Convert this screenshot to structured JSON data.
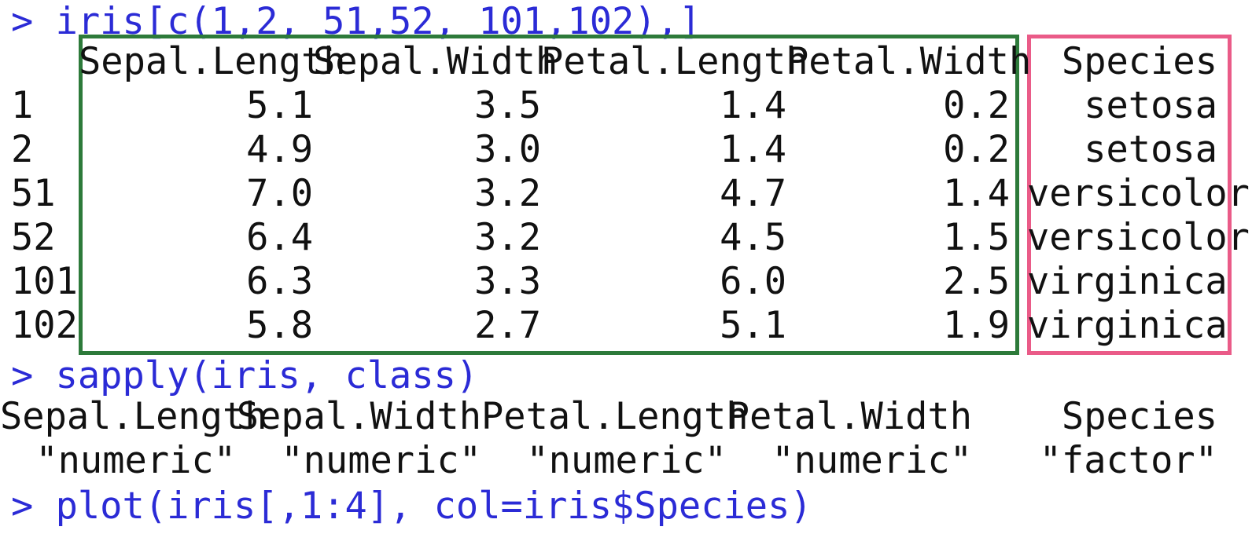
{
  "commands": {
    "first": "> iris[c(1,2, 51,52, 101,102),]",
    "second": "> sapply(iris, class)",
    "third": "> plot(iris[,1:4], col=iris$Species)"
  },
  "table": {
    "columns": [
      "Sepal.Length",
      "Sepal.Width",
      "Petal.Length",
      "Petal.Width",
      "Species"
    ],
    "rows": [
      {
        "name": "1",
        "values": [
          "5.1",
          "3.5",
          "1.4",
          "0.2",
          "setosa"
        ]
      },
      {
        "name": "2",
        "values": [
          "4.9",
          "3.0",
          "1.4",
          "0.2",
          "setosa"
        ]
      },
      {
        "name": "51",
        "values": [
          "7.0",
          "3.2",
          "4.7",
          "1.4",
          "versicolor"
        ]
      },
      {
        "name": "52",
        "values": [
          "6.4",
          "3.2",
          "4.5",
          "1.5",
          "versicolor"
        ]
      },
      {
        "name": "101",
        "values": [
          "6.3",
          "3.3",
          "6.0",
          "2.5",
          "virginica"
        ]
      },
      {
        "name": "102",
        "values": [
          "5.8",
          "2.7",
          "5.1",
          "1.9",
          "virginica"
        ]
      }
    ]
  },
  "classes": {
    "names": [
      "Sepal.Length",
      "Sepal.Width",
      "Petal.Length",
      "Petal.Width",
      "Species"
    ],
    "values": [
      "\"numeric\"",
      "\"numeric\"",
      "\"numeric\"",
      "\"numeric\"",
      "\"factor\""
    ]
  },
  "colors": {
    "command_text": "#2b2bd6",
    "output_text": "#111111",
    "numeric_box": "#2d7a3a",
    "species_box": "#ea5b88"
  }
}
